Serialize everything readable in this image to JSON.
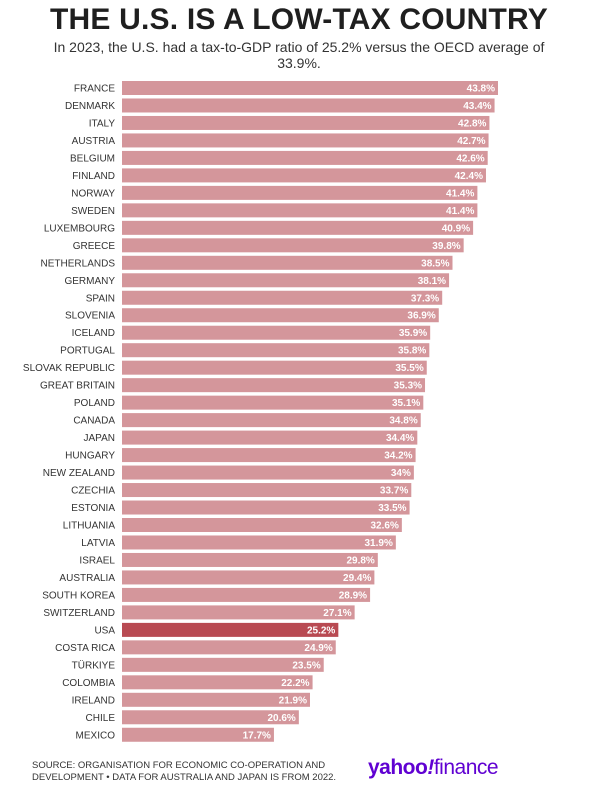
{
  "title": "THE U.S. IS A LOW-TAX COUNTRY",
  "subtitle": "In 2023, the U.S. had a tax-to-GDP ratio of 25.2% versus the OECD average of 33.9%.",
  "source": "SOURCE: ORGANISATION FOR ECONOMIC CO-OPERATION AND DEVELOPMENT • DATA FOR AUSTRALIA AND JAPAN IS FROM 2022.",
  "brand": "yahoo!finance",
  "colors": {
    "bar": "#d4969b",
    "highlight": "#b84a52",
    "value_text": "#ffffff"
  },
  "chart_data": {
    "type": "bar",
    "orientation": "horizontal",
    "categories": [
      "FRANCE",
      "DENMARK",
      "ITALY",
      "AUSTRIA",
      "BELGIUM",
      "FINLAND",
      "NORWAY",
      "SWEDEN",
      "LUXEMBOURG",
      "GREECE",
      "NETHERLANDS",
      "GERMANY",
      "SPAIN",
      "SLOVENIA",
      "ICELAND",
      "PORTUGAL",
      "SLOVAK REPUBLIC",
      "GREAT BRITAIN",
      "POLAND",
      "CANADA",
      "JAPAN",
      "HUNGARY",
      "NEW ZEALAND",
      "CZECHIA",
      "ESTONIA",
      "LITHUANIA",
      "LATVIA",
      "ISRAEL",
      "AUSTRALIA",
      "SOUTH KOREA",
      "SWITZERLAND",
      "USA",
      "COSTA RICA",
      "TÜRKIYE",
      "COLOMBIA",
      "IRELAND",
      "CHILE",
      "MEXICO"
    ],
    "values": [
      43.8,
      43.4,
      42.8,
      42.7,
      42.6,
      42.4,
      41.4,
      41.4,
      40.9,
      39.8,
      38.5,
      38.1,
      37.3,
      36.9,
      35.9,
      35.8,
      35.5,
      35.3,
      35.1,
      34.8,
      34.4,
      34.2,
      34,
      33.7,
      33.5,
      32.6,
      31.9,
      29.8,
      29.4,
      28.9,
      27.1,
      25.2,
      24.9,
      23.5,
      22.2,
      21.9,
      20.6,
      17.7
    ],
    "value_labels": [
      "43.8%",
      "43.4%",
      "42.8%",
      "42.7%",
      "42.6%",
      "42.4%",
      "41.4%",
      "41.4%",
      "40.9%",
      "39.8%",
      "38.5%",
      "38.1%",
      "37.3%",
      "36.9%",
      "35.9%",
      "35.8%",
      "35.5%",
      "35.3%",
      "35.1%",
      "34.8%",
      "34.4%",
      "34.2%",
      "34%",
      "33.7%",
      "33.5%",
      "32.6%",
      "31.9%",
      "29.8%",
      "29.4%",
      "28.9%",
      "27.1%",
      "25.2%",
      "24.9%",
      "23.5%",
      "22.2%",
      "21.9%",
      "20.6%",
      "17.7%"
    ],
    "highlight": "USA",
    "xlim": [
      0,
      43.8
    ],
    "grid": false,
    "legend": "none"
  }
}
